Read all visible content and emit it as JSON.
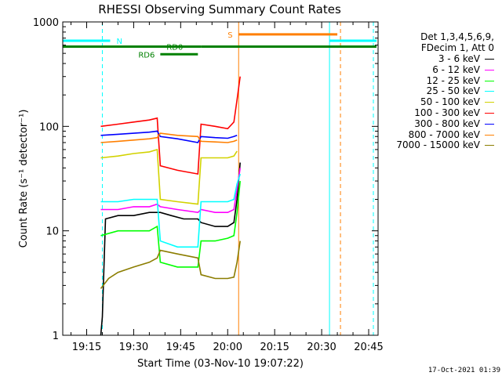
{
  "chart_data": {
    "type": "line",
    "title": "RHESSI Observing Summary Count Rates",
    "xlabel": "Start Time (03-Nov-10 19:07:22)",
    "ylabel": "Count Rate (s⁻¹ detector⁻¹)",
    "yscale": "log",
    "ylim": [
      1,
      1000
    ],
    "xlim": [
      "19:07:22",
      "20:48:00"
    ],
    "x_ticks": [
      "19:15",
      "19:30",
      "19:45",
      "20:00",
      "20:15",
      "20:30",
      "20:45"
    ],
    "y_ticks": [
      "1",
      "10",
      "100",
      "1000"
    ],
    "legend": {
      "header": [
        "Det 1,3,4,5,6,9,",
        "FDecim 1, Att 0"
      ],
      "placement": "right"
    },
    "series": [
      {
        "name": "3 - 6 keV",
        "color": "#000000",
        "points": [
          [
            "19:19:30",
            1
          ],
          [
            "19:20:00",
            1.5
          ],
          [
            "19:21:00",
            13
          ],
          [
            "19:25",
            14
          ],
          [
            "19:30",
            14
          ],
          [
            "19:35",
            15
          ],
          [
            "19:37:30",
            15
          ],
          [
            "19:38:30",
            15
          ],
          [
            "19:42",
            14
          ],
          [
            "19:46",
            13
          ],
          [
            "19:50:30",
            13
          ],
          [
            "19:51:30",
            12
          ],
          [
            "19:56",
            11
          ],
          [
            "20:00",
            11
          ],
          [
            "20:02",
            12
          ],
          [
            "20:03",
            20
          ],
          [
            "20:04",
            45
          ]
        ]
      },
      {
        "name": "6 - 12 keV",
        "color": "#ff00ff",
        "points": [
          [
            "19:19:30",
            16
          ],
          [
            "19:25",
            16
          ],
          [
            "19:30",
            17
          ],
          [
            "19:35",
            17
          ],
          [
            "19:37:30",
            18
          ],
          [
            "19:38:30",
            17
          ],
          [
            "19:44",
            16
          ],
          [
            "19:50:30",
            15
          ],
          [
            "19:51:30",
            16
          ],
          [
            "19:56",
            15
          ],
          [
            "20:00",
            15
          ],
          [
            "20:02",
            16
          ],
          [
            "20:03",
            25
          ],
          [
            "20:04",
            40
          ]
        ]
      },
      {
        "name": "12 - 25 keV",
        "color": "#00ff00",
        "points": [
          [
            "19:19:30",
            9
          ],
          [
            "19:25",
            10
          ],
          [
            "19:30",
            10
          ],
          [
            "19:35",
            10
          ],
          [
            "19:37:30",
            11
          ],
          [
            "19:38:30",
            5
          ],
          [
            "19:44",
            4.5
          ],
          [
            "19:50:30",
            4.5
          ],
          [
            "19:51:30",
            8
          ],
          [
            "19:56",
            8
          ],
          [
            "20:00",
            8.5
          ],
          [
            "20:02",
            9
          ],
          [
            "20:03",
            15
          ],
          [
            "20:04",
            30
          ]
        ]
      },
      {
        "name": "25 - 50 keV",
        "color": "#00ffff",
        "points": [
          [
            "19:19:30",
            19
          ],
          [
            "19:25",
            19
          ],
          [
            "19:30",
            20
          ],
          [
            "19:35",
            20
          ],
          [
            "19:37:30",
            20
          ],
          [
            "19:38:30",
            8
          ],
          [
            "19:44",
            7
          ],
          [
            "19:50:30",
            7
          ],
          [
            "19:51:30",
            19
          ],
          [
            "19:56",
            19
          ],
          [
            "20:00",
            19
          ],
          [
            "20:02",
            20
          ],
          [
            "20:03",
            28
          ],
          [
            "20:04",
            35
          ]
        ]
      },
      {
        "name": "50 - 100 keV",
        "color": "#d2d200",
        "points": [
          [
            "19:19:30",
            50
          ],
          [
            "19:25",
            52
          ],
          [
            "19:30",
            55
          ],
          [
            "19:35",
            57
          ],
          [
            "19:37:30",
            60
          ],
          [
            "19:38:30",
            20
          ],
          [
            "19:44",
            19
          ],
          [
            "19:50:30",
            18
          ],
          [
            "19:51:30",
            50
          ],
          [
            "19:56",
            50
          ],
          [
            "20:00",
            50
          ],
          [
            "20:02",
            52
          ],
          [
            "20:03",
            58
          ]
        ]
      },
      {
        "name": "100 - 300 keV",
        "color": "#ff0000",
        "points": [
          [
            "19:19:30",
            100
          ],
          [
            "19:25",
            105
          ],
          [
            "19:30",
            110
          ],
          [
            "19:35",
            115
          ],
          [
            "19:37:30",
            120
          ],
          [
            "19:38:30",
            42
          ],
          [
            "19:44",
            38
          ],
          [
            "19:50:30",
            35
          ],
          [
            "19:51:30",
            105
          ],
          [
            "19:56",
            100
          ],
          [
            "20:00",
            95
          ],
          [
            "20:02",
            110
          ],
          [
            "20:03",
            180
          ],
          [
            "20:04",
            300
          ]
        ]
      },
      {
        "name": "300 - 800 keV",
        "color": "#0000ff",
        "points": [
          [
            "19:19:30",
            82
          ],
          [
            "19:25",
            84
          ],
          [
            "19:30",
            86
          ],
          [
            "19:35",
            88
          ],
          [
            "19:37:30",
            90
          ],
          [
            "19:38:30",
            80
          ],
          [
            "19:44",
            76
          ],
          [
            "19:50:30",
            70
          ],
          [
            "19:51:30",
            80
          ],
          [
            "19:56",
            78
          ],
          [
            "20:00",
            77
          ],
          [
            "20:02",
            80
          ],
          [
            "20:03",
            82
          ]
        ]
      },
      {
        "name": "800 - 7000 keV",
        "color": "#ff7f00",
        "points": [
          [
            "19:19:30",
            70
          ],
          [
            "19:25",
            72
          ],
          [
            "19:30",
            74
          ],
          [
            "19:35",
            76
          ],
          [
            "19:37:30",
            78
          ],
          [
            "19:38:30",
            86
          ],
          [
            "19:44",
            82
          ],
          [
            "19:50:30",
            80
          ],
          [
            "19:51:30",
            72
          ],
          [
            "19:56",
            71
          ],
          [
            "20:00",
            70
          ],
          [
            "20:02",
            72
          ],
          [
            "20:03",
            74
          ]
        ]
      },
      {
        "name": "7000 - 15000 keV",
        "color": "#8b7d00",
        "points": [
          [
            "19:19:30",
            2.8
          ],
          [
            "19:22",
            3.5
          ],
          [
            "19:25",
            4
          ],
          [
            "19:30",
            4.5
          ],
          [
            "19:35",
            5
          ],
          [
            "19:37:30",
            5.5
          ],
          [
            "19:38:30",
            6.5
          ],
          [
            "19:44",
            6
          ],
          [
            "19:50:30",
            5.5
          ],
          [
            "19:51:30",
            3.8
          ],
          [
            "19:56",
            3.5
          ],
          [
            "20:00",
            3.5
          ],
          [
            "20:02",
            3.6
          ],
          [
            "20:03",
            5
          ],
          [
            "20:04",
            8
          ]
        ]
      }
    ],
    "annotations": {
      "markers": [
        {
          "label": "N",
          "color": "#00ffff"
        },
        {
          "label": "S",
          "color": "#ff7f00"
        },
        {
          "label": "RD0",
          "color": "#008000"
        },
        {
          "label": "RD6",
          "color": "#008000"
        }
      ],
      "orbit_bars": [
        {
          "type": "N",
          "color": "#00ffff",
          "from": "19:07:22",
          "to": "19:22:30",
          "level": 660
        },
        {
          "type": "N",
          "color": "#00ffff",
          "from": "20:32:30",
          "to": "20:47:30",
          "level": 660
        },
        {
          "type": "S",
          "color": "#ff7f00",
          "from": "20:03:30",
          "to": "20:35:00",
          "level": 760
        },
        {
          "type": "RD0",
          "color": "#008000",
          "from": "19:07:22",
          "to": "19:51:30",
          "level": 580
        },
        {
          "type": "RD0",
          "color": "#008000",
          "from": "19:51:30",
          "to": "20:47:30",
          "level": 580
        },
        {
          "type": "RD6",
          "color": "#008000",
          "from": "19:38:30",
          "to": "19:50:30",
          "level": 490
        }
      ],
      "vlines": [
        {
          "t": "19:07:22",
          "color": "#00ffff",
          "style": "solid"
        },
        {
          "t": "19:20:00",
          "color": "#00ffff",
          "style": "dashed"
        },
        {
          "t": "20:03:30",
          "color": "#ff7f00",
          "style": "solid"
        },
        {
          "t": "20:32:30",
          "color": "#00ffff",
          "style": "solid"
        },
        {
          "t": "20:36:00",
          "color": "#ff7f00",
          "style": "dashed"
        },
        {
          "t": "20:46:30",
          "color": "#00ffff",
          "style": "dashed"
        }
      ]
    }
  },
  "footer": "17-Oct-2021 01:39"
}
